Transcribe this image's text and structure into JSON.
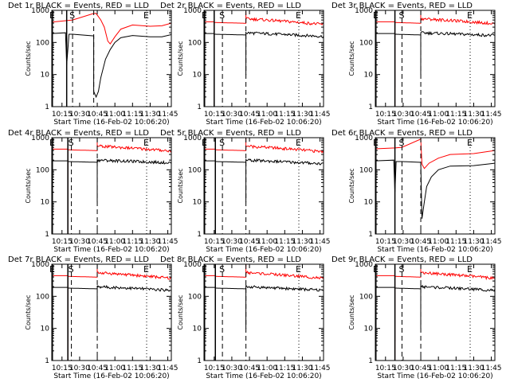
{
  "figure": {
    "x_label": "Start Time (16-Feb-02 10:06:20)",
    "y_label": "Counts/sec",
    "x_ticks": [
      "10:15",
      "10:30",
      "10:45",
      "11:00",
      "11:15",
      "11:30",
      "11:45"
    ],
    "y_ticks": [
      "1",
      "10",
      "100",
      "1000"
    ],
    "colors": {
      "events": "#000000",
      "lld": "#ff0000"
    },
    "marker_labels": {
      "start": "S",
      "end": "E"
    }
  },
  "chart_data": [
    {
      "type": "line",
      "title": "Det 1r BLACK = Events, RED = LLD",
      "x_range": [
        "10:06:20",
        "11:48:00"
      ],
      "ylim": [
        1,
        1000
      ],
      "y_scale": "log",
      "grid": false,
      "markers": {
        "E_left": "10:07",
        "solid": "10:19",
        "S_dashed": "10:24",
        "dashed": "10:42",
        "E_dotted": "11:27"
      },
      "series": [
        {
          "name": "Events",
          "color": "#000000",
          "baseline_cps": 150,
          "points": [
            [
              "10:06:20",
              190
            ],
            [
              "10:18",
              200
            ],
            [
              "10:19",
              20
            ],
            [
              "10:21",
              180
            ],
            [
              "10:24",
              180
            ],
            [
              "10:42",
              160
            ],
            [
              "10:42",
              3
            ],
            [
              "10:44",
              2
            ],
            [
              "10:46",
              3
            ],
            [
              "10:48",
              8
            ],
            [
              "10:52",
              30
            ],
            [
              "10:56",
              60
            ],
            [
              "11:00",
              100
            ],
            [
              "11:05",
              140
            ],
            [
              "11:15",
              165
            ],
            [
              "11:30",
              150
            ],
            [
              "11:40",
              150
            ],
            [
              "11:48",
              175
            ]
          ]
        },
        {
          "name": "LLD",
          "color": "#ff0000",
          "baseline_cps": 350,
          "points": [
            [
              "10:06:20",
              430
            ],
            [
              "10:19",
              480
            ],
            [
              "10:24",
              500
            ],
            [
              "10:42",
              800
            ],
            [
              "10:44",
              800
            ],
            [
              "10:48",
              500
            ],
            [
              "10:51",
              300
            ],
            [
              "10:54",
              110
            ],
            [
              "10:56",
              90
            ],
            [
              "11:00",
              150
            ],
            [
              "11:05",
              260
            ],
            [
              "11:15",
              350
            ],
            [
              "11:30",
              320
            ],
            [
              "11:40",
              330
            ],
            [
              "11:48",
              400
            ]
          ]
        }
      ]
    },
    {
      "type": "line",
      "title": "Det 2r BLACK = Events, RED = LLD",
      "x_range": [
        "10:06:20",
        "11:48:00"
      ],
      "ylim": [
        1,
        1000
      ],
      "y_scale": "log",
      "grid": false,
      "markers": {
        "E_left": "10:07",
        "solid": "10:15",
        "S_dashed": "10:22",
        "dashed": "10:42",
        "E_dotted": "11:27"
      },
      "series": [
        {
          "name": "Events",
          "color": "#000000",
          "baseline_cps": 140
        },
        {
          "name": "LLD",
          "color": "#ff0000",
          "baseline_cps": 330
        }
      ]
    },
    {
      "type": "line",
      "title": "Det 3r BLACK = Events, RED = LLD",
      "x_range": [
        "10:06:20",
        "11:48:00"
      ],
      "ylim": [
        1,
        1000
      ],
      "y_scale": "log",
      "grid": false,
      "markers": {
        "E_left": "10:07",
        "solid": "10:23",
        "S_dashed": "10:29",
        "dashed": "10:45",
        "E_dotted": "11:27"
      },
      "series": [
        {
          "name": "Events",
          "color": "#000000",
          "baseline_cps": 150
        },
        {
          "name": "LLD",
          "color": "#ff0000",
          "baseline_cps": 350
        }
      ]
    },
    {
      "type": "line",
      "title": "Det 4r BLACK = Events, RED = LLD",
      "x_range": [
        "10:06:20",
        "11:48:00"
      ],
      "ylim": [
        1,
        1000
      ],
      "y_scale": "log",
      "grid": false,
      "markers": {
        "E_left": "10:07",
        "solid": "10:20",
        "S_dashed": "10:23",
        "dashed": "10:45",
        "E_dotted": "11:27"
      },
      "series": [
        {
          "name": "Events",
          "color": "#000000",
          "baseline_cps": 150
        },
        {
          "name": "LLD",
          "color": "#ff0000",
          "baseline_cps": 350
        }
      ]
    },
    {
      "type": "line",
      "title": "Det 5r BLACK = Events, RED = LLD",
      "x_range": [
        "10:06:20",
        "11:48:00"
      ],
      "ylim": [
        1,
        1000
      ],
      "y_scale": "log",
      "grid": false,
      "markers": {
        "E_left": "10:07",
        "solid": "10:16",
        "S_dashed": "10:22",
        "dashed": "10:42",
        "E_dotted": "11:27"
      },
      "series": [
        {
          "name": "Events",
          "color": "#000000",
          "baseline_cps": 140
        },
        {
          "name": "LLD",
          "color": "#ff0000",
          "baseline_cps": 330
        }
      ]
    },
    {
      "type": "line",
      "title": "Det 6r BLACK = Events, RED = LLD",
      "x_range": [
        "10:06:20",
        "11:48:00"
      ],
      "ylim": [
        1,
        1000
      ],
      "y_scale": "log",
      "grid": false,
      "markers": {
        "E_left": "10:07",
        "solid": "10:23",
        "S_dashed": "10:29",
        "dashed": "10:45",
        "E_dotted": "11:27"
      },
      "series": [
        {
          "name": "Events",
          "color": "#000000",
          "baseline_cps": 140,
          "points": [
            [
              "10:06:20",
              190
            ],
            [
              "10:22",
              200
            ],
            [
              "10:23",
              20
            ],
            [
              "10:24",
              180
            ],
            [
              "10:29",
              180
            ],
            [
              "10:45",
              170
            ],
            [
              "10:46",
              3
            ],
            [
              "10:48",
              10
            ],
            [
              "10:50",
              30
            ],
            [
              "10:54",
              60
            ],
            [
              "11:00",
              100
            ],
            [
              "11:10",
              130
            ],
            [
              "11:30",
              135
            ],
            [
              "11:48",
              160
            ]
          ]
        },
        {
          "name": "LLD",
          "color": "#ff0000",
          "baseline_cps": 330,
          "points": [
            [
              "10:06:20",
              450
            ],
            [
              "10:23",
              480
            ],
            [
              "10:29",
              500
            ],
            [
              "10:45",
              900
            ],
            [
              "10:46",
              150
            ],
            [
              "10:48",
              110
            ],
            [
              "10:52",
              160
            ],
            [
              "11:00",
              230
            ],
            [
              "11:10",
              300
            ],
            [
              "11:30",
              320
            ],
            [
              "11:48",
              400
            ]
          ]
        }
      ]
    },
    {
      "type": "line",
      "title": "Det 7r BLACK = Events, RED = LLD",
      "x_range": [
        "10:06:20",
        "11:48:00"
      ],
      "ylim": [
        1,
        1000
      ],
      "y_scale": "log",
      "grid": false,
      "markers": {
        "E_left": "10:07",
        "solid": "10:20",
        "S_dashed": "10:23",
        "dashed": "10:45",
        "E_dotted": "11:27"
      },
      "series": [
        {
          "name": "Events",
          "color": "#000000",
          "baseline_cps": 140
        },
        {
          "name": "LLD",
          "color": "#ff0000",
          "baseline_cps": 330
        }
      ]
    },
    {
      "type": "line",
      "title": "Det 8r BLACK = Events, RED = LLD",
      "x_range": [
        "10:06:20",
        "11:48:00"
      ],
      "ylim": [
        1,
        1000
      ],
      "y_scale": "log",
      "grid": false,
      "markers": {
        "E_left": "10:07",
        "solid": "10:16",
        "S_dashed": "10:22",
        "dashed": "10:42",
        "E_dotted": "11:27"
      },
      "series": [
        {
          "name": "Events",
          "color": "#000000",
          "baseline_cps": 140
        },
        {
          "name": "LLD",
          "color": "#ff0000",
          "baseline_cps": 330
        }
      ]
    },
    {
      "type": "line",
      "title": "Det 9r BLACK = Events, RED = LLD",
      "x_range": [
        "10:06:20",
        "11:48:00"
      ],
      "ylim": [
        1,
        1000
      ],
      "y_scale": "log",
      "grid": false,
      "markers": {
        "E_left": "10:07",
        "solid": "10:23",
        "S_dashed": "10:29",
        "dashed": "10:45",
        "E_dotted": "11:27"
      },
      "series": [
        {
          "name": "Events",
          "color": "#000000",
          "baseline_cps": 140
        },
        {
          "name": "LLD",
          "color": "#ff0000",
          "baseline_cps": 330
        }
      ]
    }
  ]
}
